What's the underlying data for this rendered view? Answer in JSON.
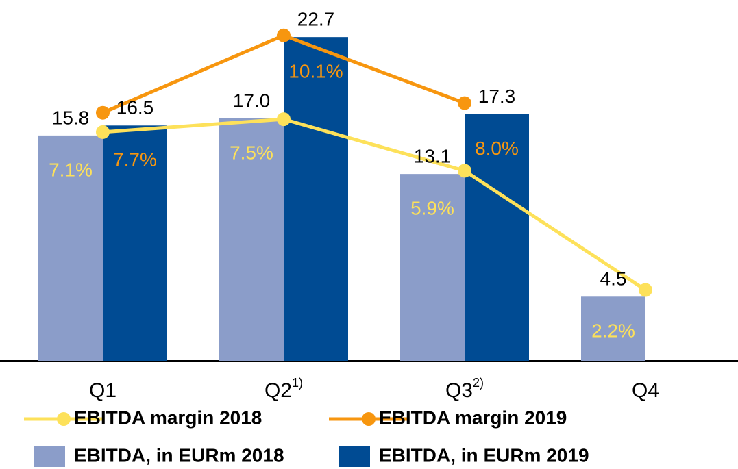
{
  "chart_data": {
    "type": "bar",
    "categories": [
      "Q1",
      "Q2",
      "Q3",
      "Q4"
    ],
    "category_notes": [
      null,
      "1)",
      "2)",
      null
    ],
    "ylim": [
      0,
      25.3
    ],
    "y2lim": [
      0,
      11.2
    ],
    "legend": "bottom",
    "series": [
      {
        "name": "EBITDA margin 2018",
        "type": "line",
        "axis": "y2",
        "color": "#fde15a",
        "values": [
          7.1,
          7.5,
          5.9,
          2.2
        ],
        "value_labels": [
          "7.1%",
          "7.5%",
          "5.9%",
          "2.2%"
        ]
      },
      {
        "name": "EBITDA margin 2019",
        "type": "line",
        "axis": "y2",
        "color": "#f7960f",
        "values": [
          7.7,
          10.1,
          8.0,
          null
        ],
        "value_labels": [
          "7.7%",
          "10.1%",
          "8.0%",
          null
        ]
      },
      {
        "name": "EBITDA, in EURm 2018",
        "type": "bar",
        "color": "#8b9dc9",
        "values": [
          15.8,
          17.0,
          13.1,
          4.5
        ],
        "value_labels": [
          "15.8",
          "17.0",
          "13.1",
          "4.5"
        ]
      },
      {
        "name": "EBITDA, in EURm 2019",
        "type": "bar",
        "color": "#004b93",
        "values": [
          16.5,
          22.7,
          17.3,
          null
        ],
        "value_labels": [
          "16.5",
          "22.7",
          "17.3",
          null
        ]
      }
    ]
  }
}
